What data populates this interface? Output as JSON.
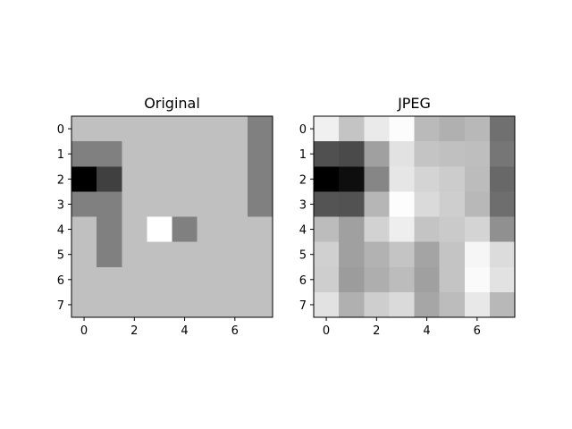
{
  "chart_data": [
    {
      "type": "heatmap",
      "title": "Original",
      "colormap": "gray",
      "vmin": 0,
      "vmax": 255,
      "x_ticks": [
        "0",
        "2",
        "4",
        "6"
      ],
      "y_ticks": [
        "0",
        "1",
        "2",
        "3",
        "4",
        "5",
        "6",
        "7"
      ],
      "values": [
        [
          192,
          192,
          192,
          192,
          192,
          192,
          192,
          128
        ],
        [
          128,
          128,
          192,
          192,
          192,
          192,
          192,
          128
        ],
        [
          0,
          64,
          192,
          192,
          192,
          192,
          192,
          128
        ],
        [
          128,
          128,
          192,
          192,
          192,
          192,
          192,
          128
        ],
        [
          192,
          128,
          192,
          255,
          128,
          192,
          192,
          192
        ],
        [
          192,
          128,
          192,
          192,
          192,
          192,
          192,
          192
        ],
        [
          192,
          192,
          192,
          192,
          192,
          192,
          192,
          192
        ],
        [
          192,
          192,
          192,
          192,
          192,
          192,
          192,
          192
        ]
      ]
    },
    {
      "type": "heatmap",
      "title": "JPEG",
      "colormap": "gray",
      "vmin": 0,
      "vmax": 255,
      "x_ticks": [
        "0",
        "2",
        "4",
        "6"
      ],
      "y_ticks": [
        "0",
        "1",
        "2",
        "3",
        "4",
        "5",
        "6",
        "7"
      ],
      "values": [
        [
          240,
          196,
          234,
          252,
          186,
          176,
          184,
          112
        ],
        [
          80,
          74,
          160,
          226,
          196,
          192,
          190,
          118
        ],
        [
          0,
          14,
          134,
          230,
          212,
          204,
          188,
          104
        ],
        [
          84,
          82,
          182,
          253,
          218,
          206,
          184,
          110
        ],
        [
          188,
          160,
          210,
          238,
          196,
          202,
          212,
          144
        ],
        [
          208,
          160,
          178,
          196,
          164,
          196,
          246,
          220
        ],
        [
          206,
          156,
          174,
          188,
          160,
          196,
          250,
          226
        ],
        [
          226,
          176,
          206,
          218,
          166,
          188,
          232,
          184
        ]
      ]
    }
  ]
}
